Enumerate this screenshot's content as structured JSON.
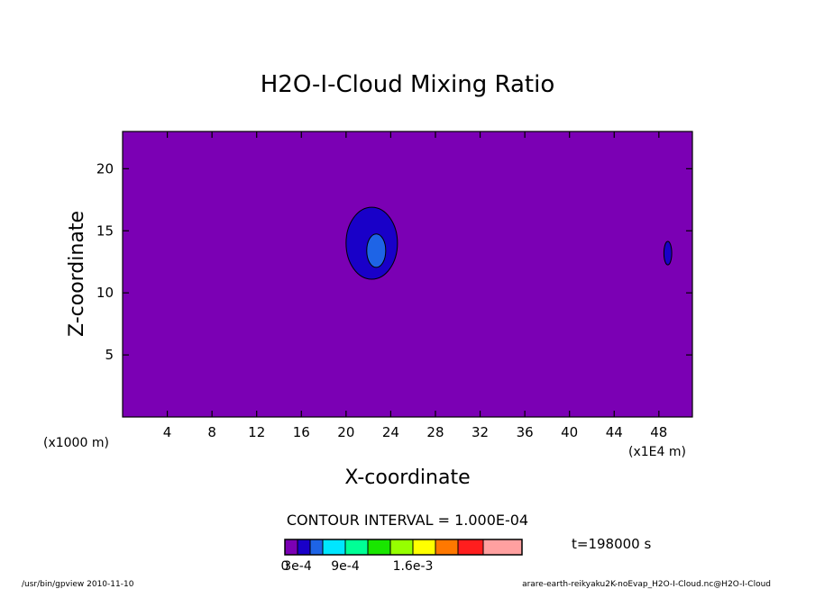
{
  "chart_data": {
    "type": "heatmap",
    "title": "H2O-I-Cloud Mixing Ratio",
    "xlabel": "X-coordinate",
    "ylabel": "Z-coordinate",
    "x_unit_left": "(x1000 m)",
    "x_unit_right": "(x1E4 m)",
    "xlim": [
      0,
      51
    ],
    "ylim": [
      0,
      23
    ],
    "xticks": [
      4,
      8,
      12,
      16,
      20,
      24,
      28,
      32,
      36,
      40,
      44,
      48
    ],
    "yticks": [
      5,
      10,
      15,
      20
    ],
    "contour_interval_text": "CONTOUR INTERVAL = 1.000E-04",
    "time_text": "t=198000 s",
    "colorbar": {
      "colors": [
        "#7b00b4",
        "#1900c8",
        "#1e64e6",
        "#00e6ff",
        "#00ff96",
        "#19e600",
        "#96ff00",
        "#ffff00",
        "#ff7800",
        "#ff1e1e",
        "#ffa0a0"
      ],
      "labels": [
        {
          "text": "0",
          "index": 0
        },
        {
          "text": "3e-4",
          "index": 1
        },
        {
          "text": "9e-4",
          "index": 4
        },
        {
          "text": "1.6e-3",
          "index": 7
        }
      ]
    },
    "background_color": "#7b00b4",
    "regions": [
      {
        "cx": 22.3,
        "cy": 14.0,
        "rx": 2.3,
        "ry": 2.9,
        "color": "#1900c8"
      },
      {
        "cx": 22.7,
        "cy": 13.4,
        "rx": 0.85,
        "ry": 1.35,
        "color": "#1e64e6"
      },
      {
        "cx": 48.8,
        "cy": 13.2,
        "rx": 0.35,
        "ry": 0.95,
        "color": "#1900c8"
      }
    ]
  },
  "footer": {
    "left": "/usr/bin/gpview  2010-11-10",
    "right": "arare-earth-reikyaku2K-noEvap_H2O-I-Cloud.nc@H2O-I-Cloud"
  }
}
